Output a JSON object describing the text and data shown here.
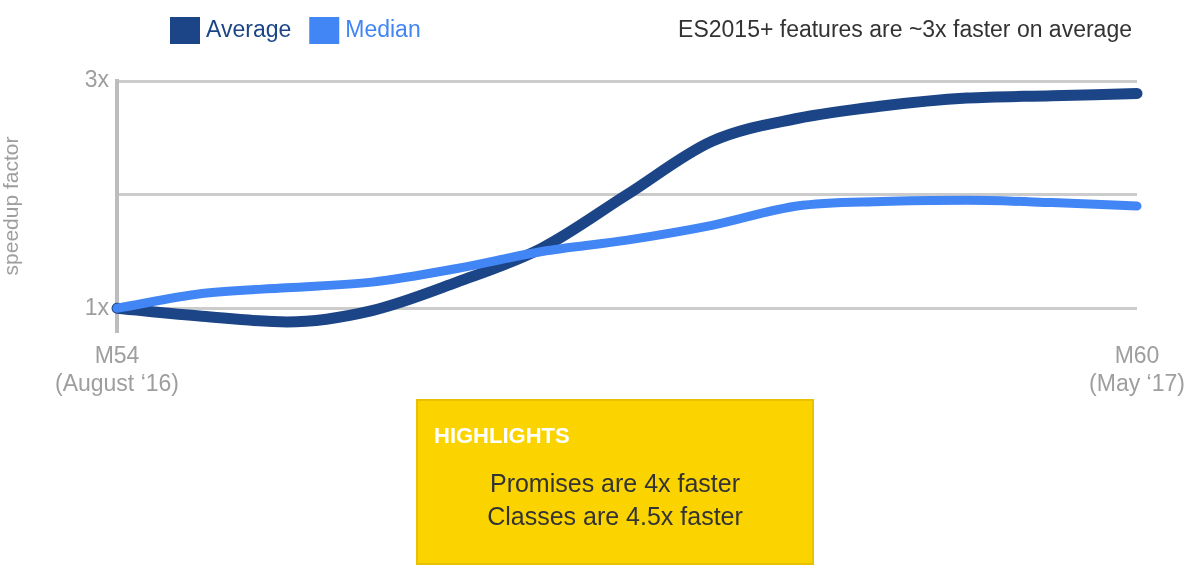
{
  "chart_data": {
    "type": "line",
    "title": "ES2015+ features are ~3x faster on average",
    "ylabel": "speedup factor",
    "categories": [
      "M54\n(August ‘16)",
      null,
      null,
      null,
      null,
      null,
      null,
      null,
      null,
      null,
      null,
      null,
      "M60\n(May ‘17)"
    ],
    "series": [
      {
        "name": "Average",
        "color": "#1c4587",
        "values": [
          1.0,
          0.93,
          0.88,
          0.98,
          1.23,
          1.53,
          2.0,
          2.47,
          2.67,
          2.78,
          2.85,
          2.87,
          2.89
        ]
      },
      {
        "name": "Median",
        "color": "#4285f4",
        "values": [
          1.0,
          1.13,
          1.18,
          1.23,
          1.35,
          1.5,
          1.6,
          1.73,
          1.9,
          1.94,
          1.95,
          1.93,
          1.9
        ]
      }
    ],
    "ylim": [
      0.8,
      3
    ],
    "yticks": [
      {
        "value": 1,
        "label": "1x"
      },
      {
        "value": 2,
        "label": null
      },
      {
        "value": 3,
        "label": "3x"
      }
    ],
    "grid": "y",
    "legend": "top left",
    "marker": "none",
    "line_style": "solid",
    "annotations": [
      "HIGHLIGHTS",
      "Promises are 4x faster",
      "Classes are 4.5x faster"
    ]
  }
}
